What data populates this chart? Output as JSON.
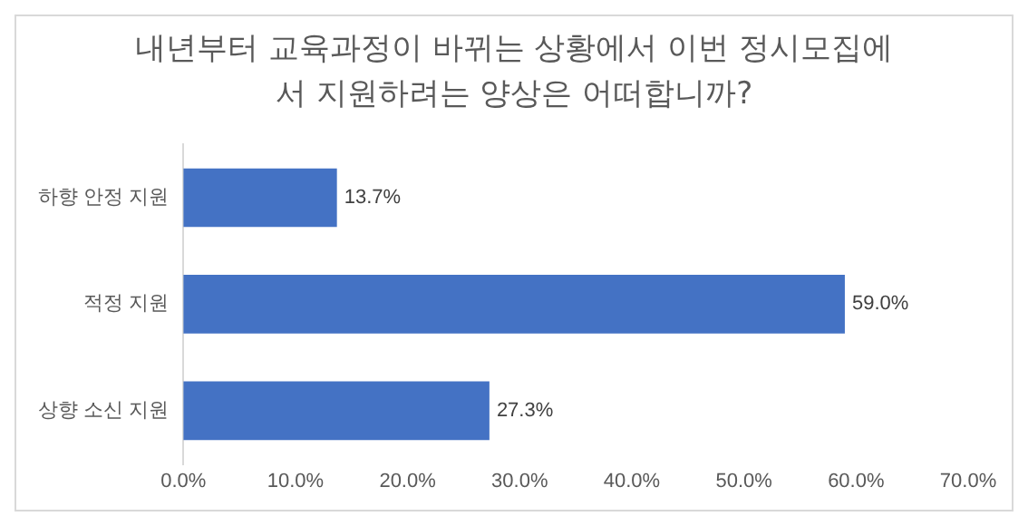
{
  "chart_data": {
    "type": "bar",
    "orientation": "horizontal",
    "title": "내년부터 교육과정이 바뀌는 상황에서 이번 정시모집에서 지원하려는 양상은 어떠합니까?",
    "categories": [
      "하향 안정 지원",
      "적정 지원",
      "상향 소신 지원"
    ],
    "values": [
      13.7,
      59.0,
      27.3
    ],
    "value_labels": [
      "13.7%",
      "59.0%",
      "27.3%"
    ],
    "color": "#4472c4",
    "xlim": [
      0,
      70
    ],
    "xticks": [
      {
        "value": 0,
        "label": "0.0%"
      },
      {
        "value": 10,
        "label": "10.0%"
      },
      {
        "value": 20,
        "label": "20.0%"
      },
      {
        "value": 30,
        "label": "30.0%"
      },
      {
        "value": 40,
        "label": "40.0%"
      },
      {
        "value": 50,
        "label": "50.0%"
      },
      {
        "value": 60,
        "label": "60.0%"
      },
      {
        "value": 70,
        "label": "70.0%"
      }
    ],
    "grid": false,
    "legend": false
  }
}
